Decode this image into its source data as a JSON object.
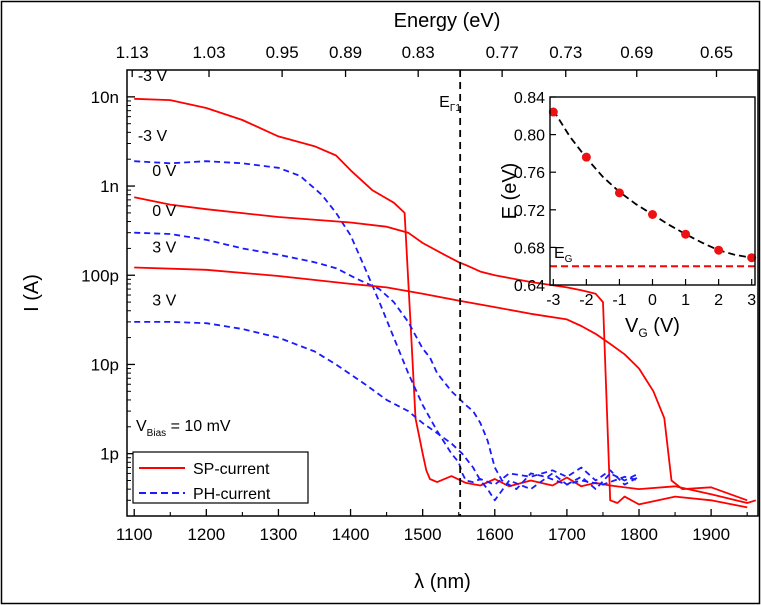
{
  "chart_data": [
    {
      "type": "line",
      "title": "",
      "xlabel": "λ (nm)",
      "x2label": "Energy (eV)",
      "ylabel": "I (A)",
      "yscale": "log",
      "xlim": [
        1090,
        1965
      ],
      "ylim": [
        2e-13,
        2e-08
      ],
      "x_ticks": [
        1100,
        1200,
        1300,
        1400,
        1500,
        1600,
        1700,
        1800,
        1900
      ],
      "x_tick_labels": [
        "1100",
        "1200",
        "1300",
        "1400",
        "1500",
        "1600",
        "1700",
        "1800",
        "1900"
      ],
      "x2_ticks": [
        1.13,
        1.03,
        0.95,
        0.89,
        0.83,
        0.77,
        0.73,
        0.69,
        0.65
      ],
      "x2_tick_labels": [
        "1.13",
        "1.03",
        "0.95",
        "0.89",
        "0.83",
        "0.77",
        "0.73",
        "0.69",
        "0.65"
      ],
      "y_ticks": [
        1e-12,
        1e-11,
        1e-10,
        1e-09,
        1e-08
      ],
      "y_tick_labels": [
        "1p",
        "10p",
        "100p",
        "1n",
        "10n"
      ],
      "vline": {
        "x": 1552,
        "label": "E",
        "label_sub": "Γ1"
      },
      "annotation": {
        "label": "V",
        "sub": "Bias",
        "rest": " = 10 mV"
      },
      "legend": {
        "position": "bottom-left",
        "entries": [
          {
            "label": "SP-current",
            "color": "#ff0000",
            "dash": "solid"
          },
          {
            "label": "PH-current",
            "color": "#1a1aff",
            "dash": "dashed"
          }
        ]
      },
      "curve_labels": [
        {
          "text": "-3 V",
          "x": 1105,
          "y": 1.5e-08
        },
        {
          "text": "-3 V",
          "x": 1105,
          "y": 3.2e-09
        },
        {
          "text": "0 V",
          "x": 1125,
          "y": 1.3e-09
        },
        {
          "text": "0 V",
          "x": 1125,
          "y": 4.6e-10
        },
        {
          "text": "3 V",
          "x": 1125,
          "y": 1.8e-10
        },
        {
          "text": "3 V",
          "x": 1125,
          "y": 4.6e-11
        }
      ],
      "series": [
        {
          "kind": "SP",
          "bias": "-3 V",
          "color": "#ff0000",
          "dash": "solid",
          "x": [
            1100,
            1150,
            1200,
            1250,
            1300,
            1350,
            1380,
            1400,
            1430,
            1460,
            1475,
            1485,
            1490,
            1500,
            1505,
            1510,
            1520,
            1540,
            1560,
            1580,
            1600,
            1620,
            1650,
            1680,
            1700,
            1720,
            1740,
            1760,
            1800,
            1850,
            1900,
            1950,
            1962
          ],
          "y": [
            9.5e-09,
            9.2e-09,
            7.5e-09,
            5.5e-09,
            3.6e-09,
            2.8e-09,
            2.2e-09,
            1.5e-09,
            9e-10,
            6.5e-10,
            5e-10,
            1.5e-11,
            2.5e-12,
            1e-12,
            6.5e-13,
            5.2e-13,
            4.8e-13,
            5.6e-13,
            4.7e-13,
            4.4e-13,
            5.2e-13,
            4.3e-13,
            5e-13,
            4.4e-13,
            5.4e-13,
            4.3e-13,
            4.7e-13,
            4.4e-13,
            4e-13,
            4.3e-13,
            3.5e-13,
            2.8e-13,
            3e-13
          ]
        },
        {
          "kind": "PH",
          "bias": "-3 V",
          "color": "#1a1aff",
          "dash": "dashed",
          "x": [
            1100,
            1150,
            1200,
            1250,
            1300,
            1330,
            1360,
            1380,
            1400,
            1420,
            1440,
            1460,
            1480,
            1500,
            1520,
            1540,
            1550,
            1555,
            1560,
            1570,
            1580,
            1600,
            1620,
            1650,
            1680,
            1700,
            1720,
            1740,
            1760,
            1780,
            1800
          ],
          "y": [
            1.9e-09,
            1.8e-09,
            1.9e-09,
            1.8e-09,
            1.6e-09,
            1.3e-09,
            8e-10,
            5e-10,
            2.8e-10,
            1.2e-10,
            5e-11,
            2e-11,
            8e-12,
            3.5e-12,
            1.8e-12,
            1e-12,
            8e-13,
            6e-13,
            5e-13,
            4.8e-13,
            5.2e-13,
            4.5e-13,
            6e-13,
            5.5e-13,
            6.5e-13,
            5.5e-13,
            7e-13,
            5e-13,
            6.5e-13,
            4.5e-13,
            5.5e-13
          ]
        },
        {
          "kind": "SP",
          "bias": "0 V",
          "color": "#ff0000",
          "dash": "solid",
          "x": [
            1100,
            1150,
            1200,
            1300,
            1400,
            1450,
            1480,
            1500,
            1530,
            1550,
            1560,
            1580,
            1600,
            1650,
            1700,
            1720,
            1740,
            1750,
            1760,
            1770,
            1780,
            1800,
            1850,
            1900,
            1950
          ],
          "y": [
            7.5e-10,
            6.2e-10,
            5.5e-10,
            4.5e-10,
            3.9e-10,
            3.5e-10,
            3e-10,
            2.3e-10,
            1.7e-10,
            1.4e-10,
            1.3e-10,
            1.1e-10,
            1e-10,
            8.4e-11,
            7.3e-11,
            6.8e-11,
            6.2e-11,
            5e-11,
            3e-13,
            2.8e-13,
            3.3e-13,
            2.7e-13,
            3.3e-13,
            3e-13,
            2.5e-13
          ]
        },
        {
          "kind": "PH",
          "bias": "0 V",
          "color": "#1a1aff",
          "dash": "dashed",
          "x": [
            1100,
            1150,
            1200,
            1250,
            1300,
            1350,
            1380,
            1410,
            1440,
            1460,
            1480,
            1500,
            1510,
            1520,
            1540,
            1560,
            1570,
            1580,
            1590,
            1600,
            1610,
            1630,
            1650,
            1670,
            1700,
            1720,
            1740,
            1760,
            1780,
            1800
          ],
          "y": [
            3e-10,
            2.9e-10,
            2.5e-10,
            2e-10,
            1.7e-10,
            1.4e-10,
            1.2e-10,
            9e-11,
            7e-11,
            5e-11,
            3e-11,
            1.5e-11,
            1.2e-11,
            8e-12,
            5e-12,
            3.5e-12,
            3e-12,
            2.2e-12,
            1.4e-12,
            7e-13,
            5e-13,
            4e-13,
            6e-13,
            5.5e-13,
            4.5e-13,
            5.5e-13,
            4e-13,
            6e-13,
            5e-13,
            6e-13
          ]
        },
        {
          "kind": "SP",
          "bias": "3 V",
          "color": "#ff0000",
          "dash": "solid",
          "x": [
            1100,
            1200,
            1300,
            1400,
            1450,
            1500,
            1550,
            1600,
            1650,
            1700,
            1720,
            1740,
            1760,
            1780,
            1800,
            1820,
            1835,
            1845,
            1860,
            1900,
            1950
          ],
          "y": [
            1.22e-10,
            1.15e-10,
            9.8e-11,
            8e-11,
            7.3e-11,
            6.2e-11,
            5.2e-11,
            4.4e-11,
            3.7e-11,
            3.2e-11,
            2.7e-11,
            2.2e-11,
            1.7e-11,
            1.3e-11,
            9e-12,
            5e-12,
            2.5e-12,
            5e-13,
            4e-13,
            4.2e-13,
            3e-13
          ]
        },
        {
          "kind": "PH",
          "bias": "3 V",
          "color": "#1a1aff",
          "dash": "dashed",
          "x": [
            1100,
            1150,
            1200,
            1250,
            1300,
            1350,
            1380,
            1420,
            1450,
            1480,
            1500,
            1520,
            1540,
            1555,
            1570,
            1580,
            1590,
            1600,
            1620,
            1650,
            1680,
            1700,
            1720,
            1750,
            1780,
            1800
          ],
          "y": [
            3e-11,
            3e-11,
            2.9e-11,
            2.5e-11,
            2e-11,
            1.4e-11,
            1e-11,
            6e-12,
            4e-12,
            3e-12,
            2.2e-12,
            1.7e-12,
            1.3e-12,
            1e-12,
            7e-13,
            5e-13,
            4e-13,
            3e-13,
            5e-13,
            4e-13,
            6e-13,
            4.5e-13,
            5e-13,
            4.5e-13,
            5.5e-13,
            5e-13
          ]
        }
      ]
    },
    {
      "type": "scatter",
      "xlabel": "V",
      "xlabel_sub": "G",
      "xlabel_unit": " (V)",
      "ylabel": "E (eV)",
      "xlim": [
        -3.1,
        3.1
      ],
      "ylim": [
        0.64,
        0.84
      ],
      "x_ticks": [
        -3,
        -2,
        -1,
        0,
        1,
        2,
        3
      ],
      "x_tick_labels": [
        "-3",
        "-2",
        "-1",
        "0",
        "1",
        "2",
        "3"
      ],
      "y_ticks": [
        0.64,
        0.68,
        0.72,
        0.76,
        0.8,
        0.84
      ],
      "y_tick_labels": [
        "0.64",
        "0.68",
        "0.72",
        "0.76",
        "0.80",
        "0.84"
      ],
      "points": {
        "x": [
          -3,
          -2,
          -1,
          0,
          1,
          2,
          3
        ],
        "y": [
          0.824,
          0.776,
          0.738,
          0.715,
          0.694,
          0.677,
          0.669
        ],
        "color": "#ee1111"
      },
      "fit": {
        "x": [
          -3.0,
          -2.5,
          -2.0,
          -1.5,
          -1.0,
          -0.5,
          0.0,
          0.5,
          1.0,
          1.5,
          2.0,
          2.5,
          3.0
        ],
        "y": [
          0.826,
          0.798,
          0.775,
          0.755,
          0.739,
          0.726,
          0.715,
          0.704,
          0.694,
          0.685,
          0.677,
          0.672,
          0.669
        ],
        "color": "#000000",
        "dash": "dashed"
      },
      "hline": {
        "y": 0.66,
        "label": "E",
        "label_sub": "G",
        "color": "#ff0000",
        "dash": "dashed"
      }
    }
  ]
}
